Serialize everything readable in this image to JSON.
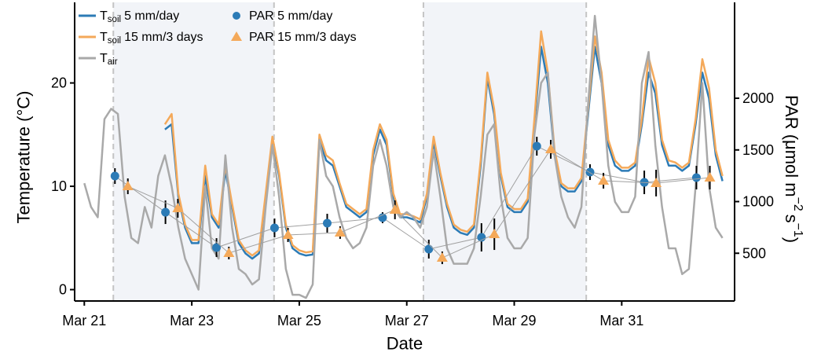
{
  "chart_data": {
    "type": "line",
    "x_label": "Date",
    "y_label": "Temperature (°C)",
    "y2_label": [
      {
        "text": "PAR (μmol m"
      },
      {
        "text": "−2",
        "sup": true
      },
      {
        "text": "s"
      },
      {
        "text": "−1",
        "sup": true
      },
      {
        "text": ")"
      }
    ],
    "xlim": [
      -0.18,
      12.1
    ],
    "xticks": [
      {
        "value": 0,
        "label": "Mar 21"
      },
      {
        "value": 2,
        "label": "Mar 23"
      },
      {
        "value": 4,
        "label": "Mar 25"
      },
      {
        "value": 6,
        "label": "Mar 27"
      },
      {
        "value": 8,
        "label": "Mar 29"
      },
      {
        "value": 10,
        "label": "Mar 31"
      }
    ],
    "ylim": [
      -1.1,
      27.8
    ],
    "yticks": [
      0,
      10,
      20
    ],
    "y2lim": [
      38,
      2928
    ],
    "y2ticks": [
      500,
      1000,
      1500,
      2000
    ],
    "legend": "upper left",
    "grid": false,
    "shaded_spans": [
      [
        0.54,
        3.53
      ],
      [
        6.31,
        9.34
      ]
    ],
    "shade_color": "#f2f4f8",
    "connector_color": "#a0a0a0",
    "x": [
      0,
      0.125,
      0.25,
      0.375,
      0.5,
      0.625,
      0.75,
      0.875,
      1,
      1.125,
      1.25,
      1.375,
      1.5,
      1.625,
      1.75,
      1.875,
      2,
      2.125,
      2.25,
      2.375,
      2.5,
      2.625,
      2.75,
      2.875,
      3,
      3.125,
      3.25,
      3.375,
      3.5,
      3.625,
      3.75,
      3.875,
      4,
      4.125,
      4.25,
      4.375,
      4.5,
      4.625,
      4.75,
      4.875,
      5,
      5.125,
      5.25,
      5.375,
      5.5,
      5.625,
      5.75,
      5.875,
      6,
      6.125,
      6.25,
      6.375,
      6.5,
      6.625,
      6.75,
      6.875,
      7,
      7.125,
      7.25,
      7.375,
      7.5,
      7.625,
      7.75,
      7.875,
      8,
      8.125,
      8.25,
      8.375,
      8.5,
      8.625,
      8.75,
      8.875,
      9,
      9.125,
      9.25,
      9.375,
      9.5,
      9.625,
      9.75,
      9.875,
      10,
      10.125,
      10.25,
      10.375,
      10.5,
      10.625,
      10.75,
      10.875,
      11,
      11.125,
      11.25,
      11.375,
      11.5,
      11.625,
      11.75,
      11.875
    ],
    "series": [
      {
        "type": "line",
        "name": [
          {
            "text": "T"
          },
          {
            "text": "soil",
            "sub": true
          },
          {
            "text": "5 mm/day"
          }
        ],
        "color": "#2c7bb6",
        "values": [
          null,
          null,
          null,
          null,
          null,
          null,
          null,
          null,
          null,
          null,
          null,
          null,
          15.5,
          16.0,
          9,
          6,
          4.5,
          4.5,
          11,
          7,
          6,
          11.5,
          8,
          4.5,
          3.5,
          3.0,
          3.5,
          9,
          14.5,
          11,
          6,
          4,
          3.5,
          3.3,
          3.4,
          14.5,
          12.5,
          12,
          10,
          8,
          7.5,
          7,
          7.5,
          13,
          15.5,
          14,
          9,
          7,
          7,
          6.8,
          6.5,
          9,
          14.3,
          11,
          8,
          6,
          5.5,
          5.3,
          6,
          12,
          20.5,
          17,
          11,
          8,
          7.5,
          7.5,
          8.5,
          16,
          23.5,
          20,
          13,
          10,
          9.5,
          9.5,
          10.5,
          17,
          23.5,
          20,
          14,
          12,
          11.5,
          11.5,
          12,
          16,
          21,
          19,
          14,
          12,
          12,
          11.5,
          12,
          16,
          21,
          18.5,
          13,
          10.5
        ]
      },
      {
        "type": "line",
        "name": [
          {
            "text": "T"
          },
          {
            "text": "soil",
            "sub": true
          },
          {
            "text": "15 mm/3 days"
          }
        ],
        "color": "#f4a95a",
        "values": [
          null,
          null,
          null,
          null,
          null,
          null,
          null,
          null,
          null,
          null,
          null,
          null,
          16.0,
          17.0,
          9.3,
          6.3,
          4.8,
          4.8,
          12,
          7.3,
          6.3,
          12,
          8.3,
          4.8,
          3.8,
          3.3,
          3.8,
          9.3,
          14.8,
          11.3,
          6.3,
          4.3,
          3.8,
          3.6,
          3.7,
          15,
          13,
          12.5,
          10.3,
          8.3,
          7.8,
          7.3,
          7.8,
          13.5,
          16,
          14.5,
          9.3,
          7.3,
          7.3,
          7.1,
          6.8,
          9.3,
          14.8,
          11.3,
          8.3,
          6.3,
          5.8,
          5.6,
          6.3,
          12.5,
          21,
          17.5,
          11.3,
          8.3,
          7.8,
          7.8,
          8.8,
          16.5,
          25,
          21,
          13.5,
          10.3,
          9.8,
          9.8,
          10.8,
          17.5,
          24.5,
          21,
          14.5,
          12.5,
          11.8,
          11.8,
          12.3,
          16.5,
          22.5,
          20,
          14.5,
          12.5,
          12.3,
          11.8,
          12.3,
          16.5,
          22.3,
          19.5,
          13.5,
          11
        ]
      },
      {
        "type": "line",
        "name": [
          {
            "text": "T"
          },
          {
            "text": "air",
            "sub": true
          }
        ],
        "color": "#a9a9a9",
        "values": [
          10.3,
          8,
          7,
          16.5,
          17.5,
          17,
          9,
          5,
          4.5,
          8,
          6,
          11,
          13,
          10,
          6,
          3,
          1.5,
          0,
          10,
          4,
          3,
          13,
          6,
          2,
          1.5,
          0.5,
          1,
          8,
          14,
          9,
          2,
          -0.5,
          -0.5,
          -0.8,
          0.5,
          14.5,
          11,
          10,
          7,
          5,
          4,
          4.5,
          6,
          12,
          14.5,
          12,
          8,
          7,
          7.5,
          7,
          6,
          8,
          13.5,
          9,
          4,
          2.5,
          2.5,
          2.5,
          4,
          9,
          15,
          16,
          9,
          5,
          4,
          4,
          5,
          15,
          20,
          21,
          13,
          9,
          7,
          6,
          8,
          18,
          26.5,
          20,
          12,
          8.5,
          7.5,
          7.5,
          9,
          20,
          23,
          14,
          8,
          4,
          4,
          1.5,
          2,
          10,
          20,
          10,
          6,
          5
        ]
      },
      {
        "type": "scatter",
        "axis": "y2",
        "marker": "circle",
        "name": [
          {
            "text": "PAR 5 mm/day"
          }
        ],
        "color": "#2c7bb6",
        "x": [
          0.57,
          1.51,
          2.46,
          3.54,
          4.52,
          5.55,
          6.41,
          7.39,
          8.42,
          9.41,
          10.42,
          11.39
        ],
        "values": [
          1247,
          897,
          555,
          745,
          791,
          844,
          540,
          654,
          1536,
          1285,
          1186,
          1232
        ],
        "errors": [
          76,
          114,
          91,
          91,
          91,
          53,
          91,
          137,
          91,
          76,
          114,
          114
        ]
      },
      {
        "type": "scatter",
        "axis": "y2",
        "marker": "triangle",
        "name": [
          {
            "text": "PAR 15 mm/3 days"
          }
        ],
        "color": "#f4a95a",
        "x": [
          0.81,
          1.74,
          2.69,
          3.79,
          4.76,
          5.78,
          6.66,
          7.63,
          8.68,
          9.66,
          10.64,
          11.64
        ],
        "values": [
          1148,
          935,
          502,
          677,
          700,
          920,
          456,
          684,
          1506,
          1202,
          1179,
          1232
        ],
        "errors": [
          76,
          91,
          61,
          68,
          61,
          91,
          61,
          152,
          91,
          76,
          129,
          114
        ]
      }
    ]
  }
}
